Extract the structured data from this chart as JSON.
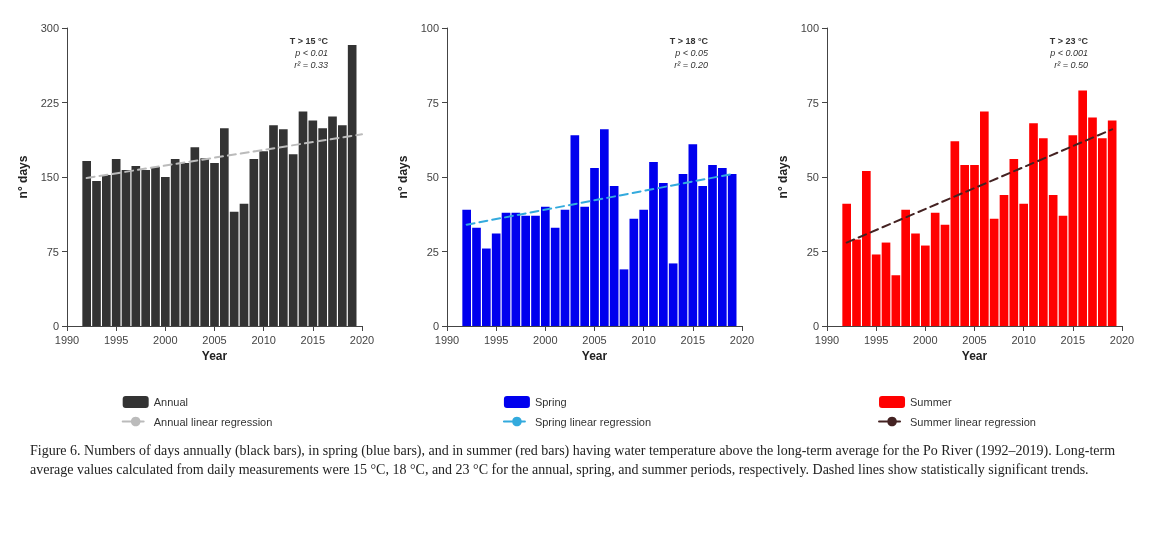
{
  "chart_data": [
    {
      "type": "bar",
      "xlabel": "Year",
      "ylabel": "n° days",
      "xlim": [
        1990,
        2020
      ],
      "xticks": [
        1990,
        1995,
        2000,
        2005,
        2010,
        2015,
        2020
      ],
      "ylim": [
        0,
        300
      ],
      "yticks": [
        0,
        75,
        150,
        225,
        300
      ],
      "grid": false,
      "legend": "bottom",
      "marker": "none",
      "x": [
        1992,
        1993,
        1994,
        1995,
        1996,
        1997,
        1998,
        1999,
        2000,
        2001,
        2002,
        2003,
        2004,
        2005,
        2006,
        2007,
        2008,
        2009,
        2010,
        2011,
        2012,
        2013,
        2014,
        2015,
        2016,
        2017,
        2018,
        2019
      ],
      "series": [
        {
          "name": "Annual",
          "color": "#333333",
          "values": [
            166,
            146,
            152,
            168,
            157,
            161,
            157,
            160,
            150,
            168,
            164,
            180,
            169,
            164,
            199,
            115,
            123,
            168,
            176,
            202,
            198,
            173,
            216,
            207,
            199,
            211,
            202,
            283
          ]
        },
        {
          "name": "Annual linear regression",
          "type": "line",
          "line_style": "dashed",
          "color": "#bbbbbb",
          "x": [
            1992,
            2020
          ],
          "values": [
            149,
            193
          ]
        }
      ],
      "annotations": [
        "T > 15 °C",
        "p < 0.01",
        "r² = 0.33"
      ]
    },
    {
      "type": "bar",
      "xlabel": "Year",
      "ylabel": "n° days",
      "xlim": [
        1990,
        2020
      ],
      "xticks": [
        1990,
        1995,
        2000,
        2005,
        2010,
        2015,
        2020
      ],
      "ylim": [
        0,
        100
      ],
      "yticks": [
        0,
        25,
        50,
        75,
        100
      ],
      "grid": false,
      "legend": "bottom",
      "marker": "none",
      "x": [
        1992,
        1993,
        1994,
        1995,
        1996,
        1997,
        1998,
        1999,
        2000,
        2001,
        2002,
        2003,
        2004,
        2005,
        2006,
        2007,
        2008,
        2009,
        2010,
        2011,
        2012,
        2013,
        2014,
        2015,
        2016,
        2017,
        2018,
        2019
      ],
      "series": [
        {
          "name": "Spring",
          "color": "#0000ee",
          "values": [
            39,
            33,
            26,
            31,
            38,
            38,
            37,
            37,
            40,
            33,
            39,
            64,
            40,
            53,
            66,
            47,
            19,
            36,
            39,
            55,
            48,
            21,
            51,
            61,
            47,
            54,
            53,
            51
          ]
        },
        {
          "name": "Spring linear regression",
          "type": "line",
          "line_style": "dashed",
          "color": "#33aadd",
          "x": [
            1992,
            2019
          ],
          "values": [
            34,
            51
          ]
        }
      ],
      "annotations": [
        "T > 18 °C",
        "p < 0.05",
        "r² = 0.20"
      ]
    },
    {
      "type": "bar",
      "xlabel": "Year",
      "ylabel": "n° days",
      "xlim": [
        1990,
        2020
      ],
      "xticks": [
        1990,
        1995,
        2000,
        2005,
        2010,
        2015,
        2020
      ],
      "ylim": [
        0,
        100
      ],
      "yticks": [
        0,
        25,
        50,
        75,
        100
      ],
      "grid": false,
      "legend": "bottom",
      "marker": "none",
      "x": [
        1992,
        1993,
        1994,
        1995,
        1996,
        1997,
        1998,
        1999,
        2000,
        2001,
        2002,
        2003,
        2004,
        2005,
        2006,
        2007,
        2008,
        2009,
        2010,
        2011,
        2012,
        2013,
        2014,
        2015,
        2016,
        2017,
        2018,
        2019
      ],
      "series": [
        {
          "name": "Summer",
          "color": "#ff0000",
          "values": [
            41,
            29,
            52,
            24,
            28,
            17,
            39,
            31,
            27,
            38,
            34,
            62,
            54,
            54,
            72,
            36,
            44,
            56,
            41,
            68,
            63,
            44,
            37,
            64,
            79,
            70,
            63,
            69
          ]
        },
        {
          "name": "Summer linear regression",
          "type": "line",
          "line_style": "dashed",
          "color": "#442222",
          "x": [
            1992,
            2019
          ],
          "values": [
            28,
            66
          ]
        }
      ],
      "annotations": [
        "T > 23 °C",
        "p < 0.001",
        "r² = 0.50"
      ]
    },
    {
      "type": "other",
      "annotations": [
        "Figure 6. Numbers of days annually (black bars), in spring (blue bars), and in summer (red bars) having water temperature above the long-term average for the Po River (1992–2019). Long-term average values calculated from daily measurements were 15 °C, 18 °C, and 23 °C for the annual, spring, and summer periods, respectively. Dashed lines show statistically significant trends."
      ]
    }
  ]
}
